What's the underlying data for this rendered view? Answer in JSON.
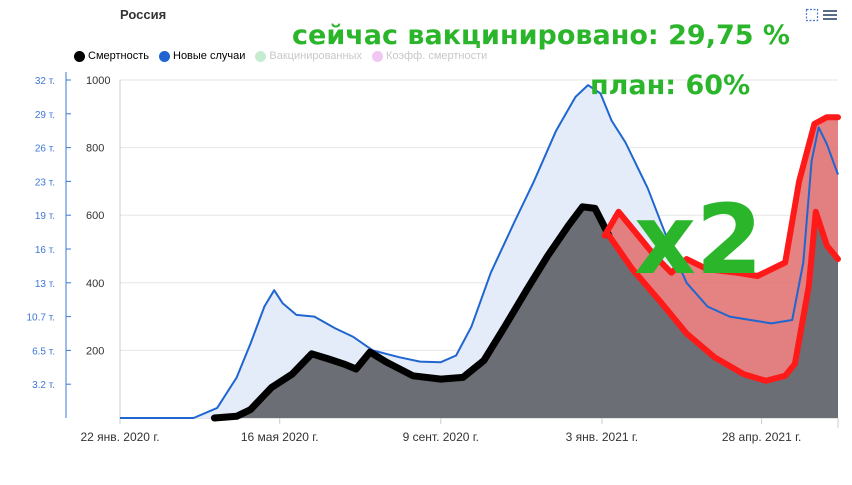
{
  "chart_data": {
    "type": "area",
    "title": "Россия",
    "legend": {
      "placement": "top-left",
      "items": [
        {
          "label": "Смертность",
          "color": "#000000",
          "visible": true
        },
        {
          "label": "Новые случаи",
          "color": "#1f66d1",
          "visible": true
        },
        {
          "label": "Вакцинированных",
          "color": "#c6ecd0",
          "visible": false
        },
        {
          "label": "Коэфф. смертности",
          "color": "#f0c6f2",
          "visible": false
        }
      ]
    },
    "x_axis": {
      "type": "date",
      "range": [
        "2020-01-22",
        "2021-06-22"
      ],
      "tick_labels": [
        "22 янв. 2020 г.",
        "16 мая 2020 г.",
        "9 сент. 2020 г.",
        "3 янв. 2021 г.",
        "28 апр. 2021 г."
      ],
      "tick_dates": [
        "2020-01-22",
        "2020-05-16",
        "2020-09-09",
        "2021-01-03",
        "2021-04-28"
      ]
    },
    "y_axis_left": {
      "range": [
        0,
        32000
      ],
      "tick_labels": [
        "3.2 т.",
        "6.5 т.",
        "10.7 т.",
        "13 т.",
        "16 т.",
        "19 т.",
        "23 т.",
        "26 т.",
        "29 т.",
        "32 т."
      ]
    },
    "y_axis_right": {
      "range": [
        0,
        1000
      ],
      "ticks": [
        200,
        400,
        600,
        800,
        1000
      ]
    },
    "grid": true,
    "series": [
      {
        "name": "Новые случаи",
        "color": "#1f66d1",
        "fill": "#e4ecf9",
        "points": [
          [
            "2020-01-22",
            0
          ],
          [
            "2020-03-15",
            0
          ],
          [
            "2020-04-01",
            30
          ],
          [
            "2020-04-15",
            120
          ],
          [
            "2020-04-25",
            220
          ],
          [
            "2020-05-05",
            330
          ],
          [
            "2020-05-12",
            378
          ],
          [
            "2020-05-18",
            340
          ],
          [
            "2020-05-28",
            305
          ],
          [
            "2020-06-10",
            300
          ],
          [
            "2020-06-25",
            265
          ],
          [
            "2020-07-08",
            240
          ],
          [
            "2020-07-22",
            200
          ],
          [
            "2020-08-10",
            180
          ],
          [
            "2020-08-25",
            167
          ],
          [
            "2020-09-09",
            165
          ],
          [
            "2020-09-20",
            185
          ],
          [
            "2020-10-01",
            270
          ],
          [
            "2020-10-15",
            430
          ],
          [
            "2020-11-01",
            580
          ],
          [
            "2020-11-15",
            700
          ],
          [
            "2020-12-01",
            850
          ],
          [
            "2020-12-15",
            950
          ],
          [
            "2020-12-24",
            985
          ],
          [
            "2021-01-02",
            960
          ],
          [
            "2021-01-10",
            880
          ],
          [
            "2021-01-20",
            815
          ],
          [
            "2021-02-05",
            680
          ],
          [
            "2021-02-20",
            520
          ],
          [
            "2021-03-05",
            400
          ],
          [
            "2021-03-20",
            330
          ],
          [
            "2021-04-05",
            300
          ],
          [
            "2021-04-20",
            290
          ],
          [
            "2021-05-05",
            280
          ],
          [
            "2021-05-20",
            290
          ],
          [
            "2021-05-28",
            460
          ],
          [
            "2021-06-03",
            760
          ],
          [
            "2021-06-08",
            860
          ],
          [
            "2021-06-14",
            810
          ],
          [
            "2021-06-22",
            720
          ]
        ]
      },
      {
        "name": "Смертность",
        "color": "#000000",
        "fill": "#6b6e74",
        "points": [
          [
            "2020-01-22",
            0
          ],
          [
            "2020-03-30",
            0
          ],
          [
            "2020-04-15",
            5
          ],
          [
            "2020-04-25",
            25
          ],
          [
            "2020-05-10",
            90
          ],
          [
            "2020-05-25",
            130
          ],
          [
            "2020-06-08",
            190
          ],
          [
            "2020-06-20",
            175
          ],
          [
            "2020-07-01",
            160
          ],
          [
            "2020-07-10",
            145
          ],
          [
            "2020-07-20",
            195
          ],
          [
            "2020-08-01",
            165
          ],
          [
            "2020-08-20",
            125
          ],
          [
            "2020-09-09",
            115
          ],
          [
            "2020-09-25",
            120
          ],
          [
            "2020-10-10",
            170
          ],
          [
            "2020-10-25",
            270
          ],
          [
            "2020-11-10",
            380
          ],
          [
            "2020-11-25",
            480
          ],
          [
            "2020-12-10",
            570
          ],
          [
            "2020-12-20",
            625
          ],
          [
            "2020-12-29",
            620
          ],
          [
            "2021-01-08",
            540
          ],
          [
            "2021-01-25",
            440
          ],
          [
            "2021-02-15",
            340
          ],
          [
            "2021-03-05",
            250
          ],
          [
            "2021-03-25",
            180
          ],
          [
            "2021-04-15",
            130
          ],
          [
            "2021-05-01",
            110
          ],
          [
            "2021-05-15",
            125
          ],
          [
            "2021-05-22",
            160
          ],
          [
            "2021-06-01",
            390
          ],
          [
            "2021-06-06",
            610
          ],
          [
            "2021-06-14",
            510
          ],
          [
            "2021-06-22",
            470
          ]
        ]
      }
    ],
    "overlay": {
      "description_fill": "#e06c6c",
      "outline_color": "#ff1a1a",
      "upper_points": [
        [
          "2021-01-05",
          540
        ],
        [
          "2021-01-15",
          610
        ],
        [
          "2021-01-25",
          560
        ],
        [
          "2021-02-10",
          480
        ],
        [
          "2021-02-22",
          430
        ],
        [
          "2021-03-05",
          470
        ],
        [
          "2021-03-20",
          440
        ],
        [
          "2021-04-10",
          430
        ],
        [
          "2021-04-25",
          420
        ],
        [
          "2021-05-05",
          440
        ],
        [
          "2021-05-15",
          460
        ],
        [
          "2021-05-25",
          700
        ],
        [
          "2021-06-05",
          870
        ],
        [
          "2021-06-14",
          890
        ],
        [
          "2021-06-22",
          890
        ]
      ]
    },
    "annotations": [
      "сейчас вакцинировано: 29,75 %",
      "план: 60%",
      "x2"
    ]
  },
  "colors": {
    "annotation": "#2bb52b",
    "highlight": "#ff1a1a"
  },
  "toolbar": {
    "icons": [
      "select-icon",
      "menu-icon"
    ]
  }
}
